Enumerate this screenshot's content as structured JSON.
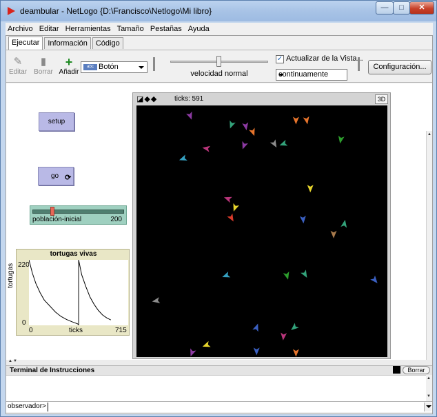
{
  "window": {
    "title": "deambular - NetLogo {D:\\Francisco\\Netlogo\\Mi libro}",
    "controls": {
      "minimize": "—",
      "maximize": "□",
      "close": "✕"
    }
  },
  "menubar": {
    "items": [
      "Archivo",
      "Editar",
      "Herramientas",
      "Tamaño",
      "Pestañas",
      "Ayuda"
    ]
  },
  "tabs": [
    {
      "label": "Ejecutar",
      "active": true
    },
    {
      "label": "Información",
      "active": false
    },
    {
      "label": "Código",
      "active": false
    }
  ],
  "toolbar": {
    "edit_label": "Editar",
    "delete_label": "Borrar",
    "add_label": "Añadir",
    "widget_type": "Botón",
    "widget_icon_text": "abc",
    "speed_label": "velocidad normal",
    "speed_value": 0.5,
    "update_view_label": "Actualizar de la Vista...",
    "update_view_checked": true,
    "update_mode": "continuamente",
    "settings_label": "Configuración..."
  },
  "widgets": {
    "setup_label": "setup",
    "go_label": "go",
    "forever_icon": "forever-icon",
    "slider": {
      "name": "población-inicial",
      "value": "200",
      "min": 0,
      "max": 1000
    }
  },
  "plot": {
    "title": "tortugas vivas",
    "ylabel": "tortugas",
    "xlabel": "ticks",
    "ymin": "0",
    "ymax": "220",
    "xmin": "0",
    "xmax": "715"
  },
  "view": {
    "ticks_label": "ticks: 591",
    "three_d_label": "3D",
    "shape_icons": "◪◆◆",
    "turtles": [
      {
        "x": 2.5,
        "y": 15.8,
        "color": "#8c3aa2",
        "angle": 160
      },
      {
        "x": 4.8,
        "y": 15.2,
        "color": "#33a37b",
        "angle": 200
      },
      {
        "x": 5.6,
        "y": 15.1,
        "color": "#8c3aa2",
        "angle": 170
      },
      {
        "x": 6.0,
        "y": 14.7,
        "color": "#e6742c",
        "angle": 160
      },
      {
        "x": 8.4,
        "y": 15.5,
        "color": "#e6742c",
        "angle": 180
      },
      {
        "x": 9.0,
        "y": 15.5,
        "color": "#e6742c",
        "angle": 170
      },
      {
        "x": 7.2,
        "y": 13.9,
        "color": "#8c8c8c",
        "angle": 150
      },
      {
        "x": 7.7,
        "y": 13.9,
        "color": "#33a37b",
        "angle": 250
      },
      {
        "x": 10.9,
        "y": 14.2,
        "color": "#2d9e2d",
        "angle": 190
      },
      {
        "x": 3.4,
        "y": 13.6,
        "color": "#b8357a",
        "angle": 280
      },
      {
        "x": 5.5,
        "y": 13.8,
        "color": "#8c3aa2",
        "angle": 200
      },
      {
        "x": 2.1,
        "y": 12.9,
        "color": "#35a0c0",
        "angle": 250
      },
      {
        "x": 9.2,
        "y": 10.9,
        "color": "#e6d42c",
        "angle": 180
      },
      {
        "x": 4.6,
        "y": 10.2,
        "color": "#b8357a",
        "angle": 290
      },
      {
        "x": 5.0,
        "y": 9.6,
        "color": "#e6d42c",
        "angle": 200
      },
      {
        "x": 4.8,
        "y": 8.9,
        "color": "#d83a2a",
        "angle": 150
      },
      {
        "x": 8.8,
        "y": 8.8,
        "color": "#3a5fc0",
        "angle": 175
      },
      {
        "x": 11.1,
        "y": 8.5,
        "color": "#33a37b",
        "angle": 10
      },
      {
        "x": 10.5,
        "y": 7.8,
        "color": "#a87a4c",
        "angle": 180
      },
      {
        "x": 4.5,
        "y": 5.0,
        "color": "#35a0c0",
        "angle": 250
      },
      {
        "x": 7.9,
        "y": 5.0,
        "color": "#2d9e2d",
        "angle": 165
      },
      {
        "x": 8.9,
        "y": 5.1,
        "color": "#33a37b",
        "angle": 150
      },
      {
        "x": 12.8,
        "y": 4.7,
        "color": "#3a5fc0",
        "angle": 140
      },
      {
        "x": 0.6,
        "y": 3.3,
        "color": "#8c8c8c",
        "angle": 260
      },
      {
        "x": 6.2,
        "y": 1.5,
        "color": "#3a5fc0",
        "angle": 20
      },
      {
        "x": 8.3,
        "y": 1.5,
        "color": "#33a37b",
        "angle": 230
      },
      {
        "x": 7.7,
        "y": 0.9,
        "color": "#b8357a",
        "angle": 185
      },
      {
        "x": 3.4,
        "y": 0.3,
        "color": "#e6d42c",
        "angle": 250
      },
      {
        "x": 2.6,
        "y": -0.2,
        "color": "#8c3aa2",
        "angle": 200
      },
      {
        "x": 6.2,
        "y": -0.1,
        "color": "#3a5fc0",
        "angle": 180
      },
      {
        "x": 8.4,
        "y": -0.2,
        "color": "#e6742c",
        "angle": 180
      }
    ]
  },
  "terminal": {
    "title": "Terminal de Instrucciones",
    "clear_label": "Borrar",
    "observer_label": "observador>",
    "command_value": ""
  },
  "colors": {
    "button_bg": "#b9b9e6",
    "slider_bg": "#9fd0c0",
    "plot_bg": "#e9e7c6",
    "world_bg": "#000000",
    "accent": "#d8241c"
  },
  "chart_data": {
    "type": "line",
    "title": "tortugas vivas",
    "xlabel": "ticks",
    "ylabel": "tortugas",
    "xlim": [
      0,
      715
    ],
    "ylim": [
      0,
      220
    ],
    "series": [
      {
        "x": [
          0,
          25,
          50,
          80,
          110,
          150,
          190,
          230,
          270,
          310,
          350,
          358,
          358,
          380,
          410,
          440,
          470,
          500,
          530,
          560,
          590
        ],
        "values": [
          220,
          175,
          140,
          110,
          85,
          65,
          45,
          30,
          20,
          12,
          5,
          2,
          220,
          170,
          130,
          95,
          70,
          50,
          35,
          25,
          18
        ]
      }
    ]
  }
}
